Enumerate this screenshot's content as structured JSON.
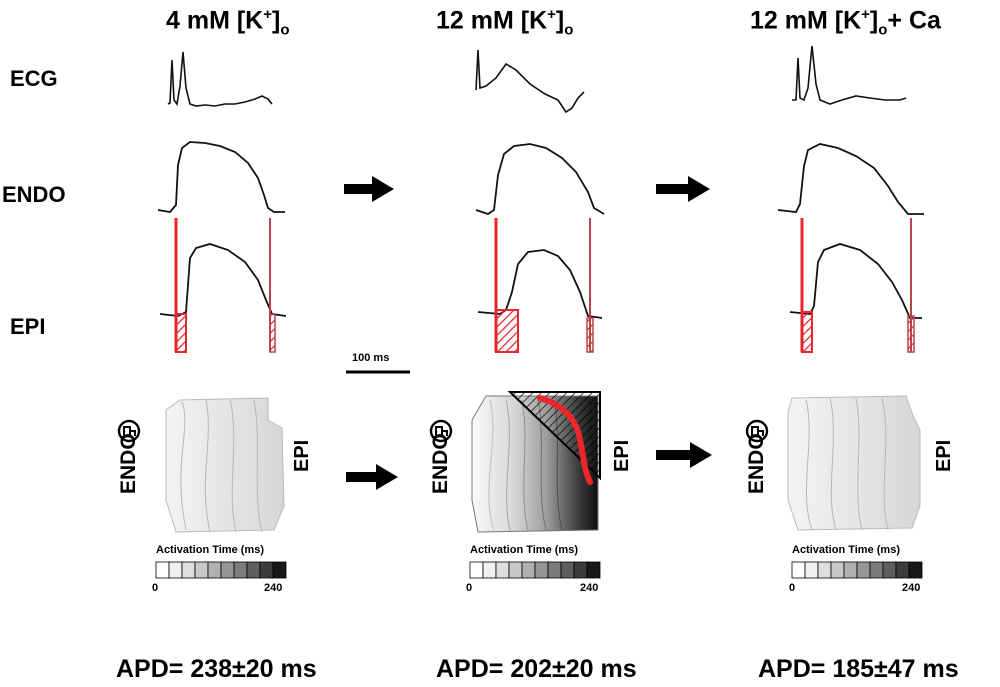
{
  "columns": [
    {
      "ion": "4 mM [K",
      "sup": "+",
      "close": "]",
      "sub": "o",
      "suffix": "",
      "apd": "APD= 238±20 ms"
    },
    {
      "ion": "12 mM [K",
      "sup": "+",
      "close": "]",
      "sub": "o",
      "suffix": "",
      "apd": "APD= 202±20 ms"
    },
    {
      "ion": "12 mM [K",
      "sup": "+",
      "close": "]",
      "sub": "o",
      "suffix": "+ Ca",
      "apd": "APD= 185±47 ms"
    }
  ],
  "rows": {
    "ecg": "ECG",
    "endo": "ENDO",
    "epi": "EPI"
  },
  "scalebar": "100 ms",
  "map": {
    "endo_label": "ENDO",
    "epi_label": "EPI",
    "colorbar_title": "Activation Time (ms)",
    "colorbar_min": "0",
    "colorbar_max": "240",
    "colorbar_colors": [
      "#ffffff",
      "#f0f0f0",
      "#dedede",
      "#c8c8c8",
      "#b0b0b0",
      "#969696",
      "#7c7c7c",
      "#5e5e5e",
      "#3c3c3c",
      "#181818"
    ]
  },
  "colors": {
    "red": "#e8262b",
    "darkred": "#b5454a"
  }
}
